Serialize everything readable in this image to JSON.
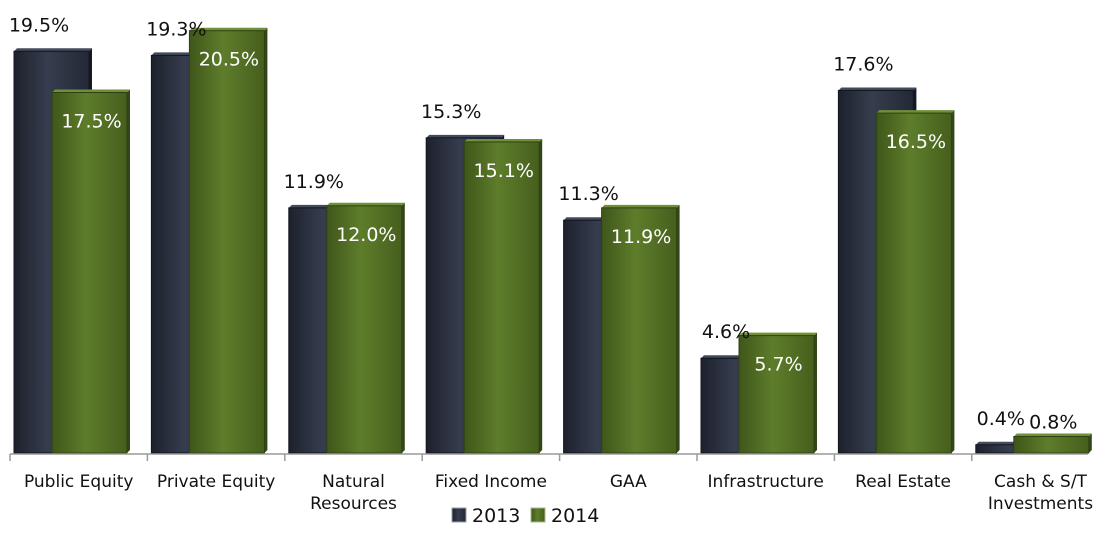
{
  "chart_data": {
    "type": "bar",
    "categories": [
      [
        "Public Equity"
      ],
      [
        "Private Equity"
      ],
      [
        "Natural",
        "Resources"
      ],
      [
        "Fixed Income"
      ],
      [
        "GAA"
      ],
      [
        "Infrastructure"
      ],
      [
        "Real Estate"
      ],
      [
        "Cash & S/T",
        "Investments"
      ]
    ],
    "series": [
      {
        "name": "2013",
        "values": [
          19.5,
          19.3,
          11.9,
          15.3,
          11.3,
          4.6,
          17.6,
          0.4
        ],
        "labels": [
          "19.5%",
          "19.3%",
          "11.9%",
          "15.3%",
          "11.3%",
          "4.6%",
          "17.6%",
          "0.4%"
        ],
        "color": "#2b3140"
      },
      {
        "name": "2014",
        "values": [
          17.5,
          20.5,
          12.0,
          15.1,
          11.9,
          5.7,
          16.5,
          0.8
        ],
        "labels": [
          "17.5%",
          "20.5%",
          "12.0%",
          "15.1%",
          "11.9%",
          "5.7%",
          "16.5%",
          "0.8%"
        ],
        "color": "#4f6b22"
      }
    ],
    "ylim": [
      0,
      21.2
    ],
    "grid": false,
    "legend": "bottom"
  }
}
